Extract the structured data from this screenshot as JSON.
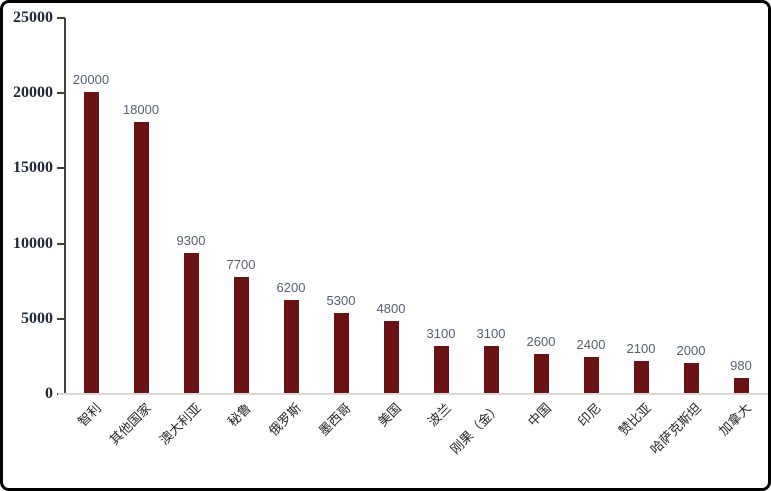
{
  "chart_data": {
    "type": "bar",
    "title": "",
    "xlabel": "",
    "ylabel": "",
    "categories": [
      "智利",
      "其他国家",
      "澳大利亚",
      "秘鲁",
      "俄罗斯",
      "墨西哥",
      "美国",
      "波兰",
      "刚果（金）",
      "中国",
      "印尼",
      "赞比亚",
      "哈萨克斯坦",
      "加拿大"
    ],
    "values": [
      20000,
      18000,
      9300,
      7700,
      6200,
      5300,
      4800,
      3100,
      3100,
      2600,
      2400,
      2100,
      2000,
      980
    ],
    "data_labels": [
      "20000",
      "18000",
      "9300",
      "7700",
      "6200",
      "5300",
      "4800",
      "3100",
      "3100",
      "2600",
      "2400",
      "2100",
      "2000",
      "980"
    ],
    "ylim": [
      0,
      25000
    ],
    "yticks": [
      0,
      5000,
      10000,
      15000,
      20000,
      25000
    ],
    "grid": false,
    "legend": false,
    "bar_color": "#6b1214"
  },
  "colors": {
    "bar": "#6b1214",
    "value_label": "#566070",
    "axis_tick_label": "#1f2635",
    "category_label": "#262626",
    "y_axis_line": "#3f3f3f",
    "x_axis_line": "#d9d9d9",
    "background": "#ffffff",
    "border": "#000000"
  }
}
